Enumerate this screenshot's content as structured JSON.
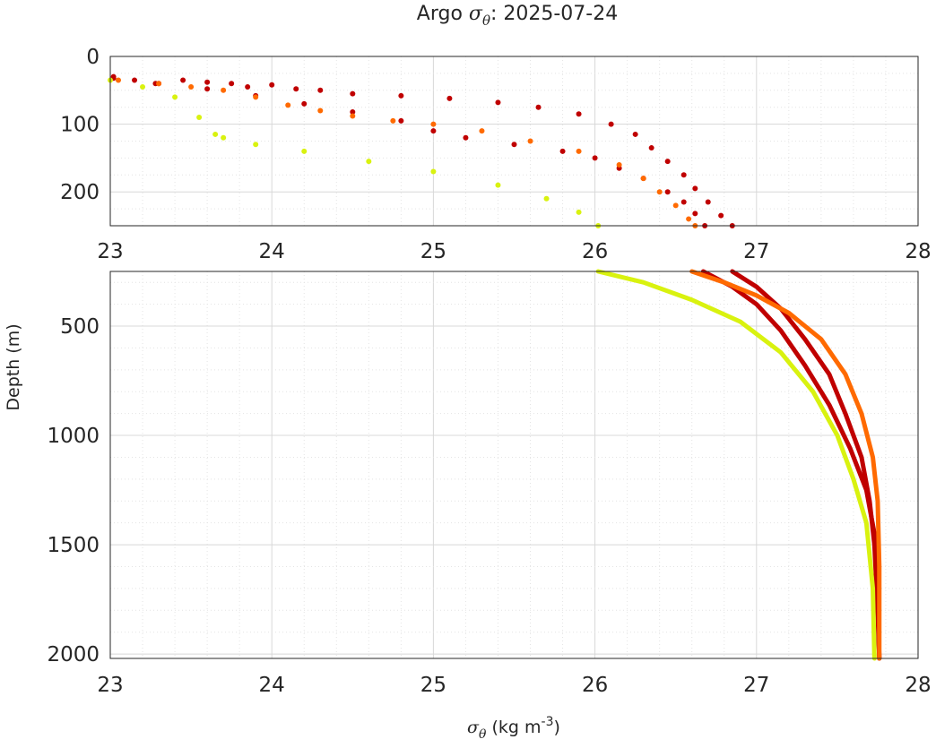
{
  "title": {
    "prefix": "Argo ",
    "symbol": "σ",
    "sub": "θ",
    "suffix": ": 2025-07-24"
  },
  "xlabel": {
    "symbol": "σ",
    "sub": "θ",
    "units": " (kg m",
    "exp": "-3",
    "close": ")"
  },
  "ylabel": "Depth (m)",
  "colors": {
    "series1": "#c00000",
    "series2": "#ff6a00",
    "series3": "#d9f20f",
    "grid": "#dcdcdc",
    "axis": "#262626"
  },
  "chart_data": [
    {
      "type": "scatter",
      "panel": "top",
      "xlim": [
        23,
        28
      ],
      "ylim": [
        0,
        250
      ],
      "y_reversed": true,
      "xticks": [
        "23",
        "24",
        "25",
        "26",
        "27",
        "28"
      ],
      "yticks": [
        "0",
        "100",
        "200"
      ],
      "grid": true,
      "series": [
        {
          "color": "#c00000",
          "x": [
            23.02,
            23.15,
            23.28,
            23.45,
            23.6,
            23.75,
            23.85,
            24.0,
            24.15,
            24.3,
            24.5,
            24.8,
            25.1,
            25.4,
            25.65,
            25.9,
            26.1,
            26.25,
            26.35,
            26.45,
            26.55,
            26.62,
            26.7,
            26.78,
            26.85
          ],
          "y": [
            30,
            35,
            40,
            35,
            38,
            40,
            45,
            42,
            48,
            50,
            55,
            58,
            62,
            68,
            75,
            85,
            100,
            115,
            135,
            155,
            175,
            195,
            215,
            235,
            250
          ]
        },
        {
          "color": "#c00000",
          "x": [
            23.02,
            23.3,
            23.6,
            23.9,
            24.2,
            24.5,
            24.8,
            25.0,
            25.2,
            25.5,
            25.8,
            26.0,
            26.15,
            26.3,
            26.45,
            26.55,
            26.62,
            26.68
          ],
          "y": [
            32,
            40,
            48,
            58,
            70,
            82,
            95,
            110,
            120,
            130,
            140,
            150,
            165,
            180,
            200,
            215,
            232,
            250
          ]
        },
        {
          "color": "#ff6a00",
          "x": [
            23.05,
            23.3,
            23.5,
            23.7,
            23.9,
            24.1,
            24.3,
            24.5,
            24.75,
            25.0,
            25.3,
            25.6,
            25.9,
            26.15,
            26.3,
            26.4,
            26.5,
            26.58,
            26.62
          ],
          "y": [
            35,
            40,
            45,
            50,
            60,
            72,
            80,
            88,
            95,
            100,
            110,
            125,
            140,
            160,
            180,
            200,
            220,
            240,
            250
          ]
        },
        {
          "color": "#d9f20f",
          "x": [
            23.0,
            23.2,
            23.4,
            23.55,
            23.65,
            23.7,
            23.9,
            24.2,
            24.6,
            25.0,
            25.4,
            25.7,
            25.9,
            26.02
          ],
          "y": [
            35,
            45,
            60,
            90,
            115,
            120,
            130,
            140,
            155,
            170,
            190,
            210,
            230,
            250
          ]
        }
      ]
    },
    {
      "type": "line",
      "panel": "bottom",
      "xlim": [
        23,
        28
      ],
      "ylim": [
        250,
        2020
      ],
      "y_reversed": true,
      "xticks": [
        "23",
        "24",
        "25",
        "26",
        "27",
        "28"
      ],
      "yticks": [
        "500",
        "1000",
        "1500",
        "2000"
      ],
      "grid": true,
      "series": [
        {
          "color": "#c00000",
          "x": [
            26.85,
            27.0,
            27.15,
            27.3,
            27.45,
            27.55,
            27.65,
            27.7,
            27.73,
            27.75,
            27.76
          ],
          "y": [
            250,
            320,
            420,
            560,
            720,
            900,
            1100,
            1300,
            1500,
            1800,
            2020
          ]
        },
        {
          "color": "#c00000",
          "x": [
            26.67,
            26.85,
            27.0,
            27.15,
            27.3,
            27.45,
            27.58,
            27.68,
            27.73,
            27.75,
            27.76
          ],
          "y": [
            250,
            320,
            400,
            520,
            680,
            860,
            1060,
            1250,
            1450,
            1750,
            2020
          ]
        },
        {
          "color": "#ff6a00",
          "x": [
            26.6,
            26.8,
            27.0,
            27.2,
            27.4,
            27.55,
            27.65,
            27.72,
            27.75,
            27.76,
            27.76
          ],
          "y": [
            250,
            300,
            360,
            440,
            560,
            720,
            900,
            1100,
            1300,
            1600,
            2020
          ]
        },
        {
          "color": "#d9f20f",
          "x": [
            26.02,
            26.3,
            26.6,
            26.9,
            27.15,
            27.35,
            27.5,
            27.6,
            27.68,
            27.72,
            27.73
          ],
          "y": [
            250,
            300,
            380,
            480,
            620,
            800,
            1000,
            1200,
            1400,
            1700,
            2020
          ]
        }
      ]
    }
  ]
}
